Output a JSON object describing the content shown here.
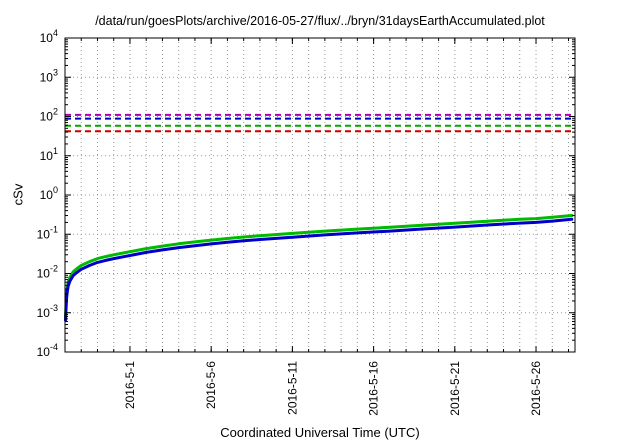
{
  "chart_data": {
    "type": "line",
    "title": "/data/run/goesPlots/archive/2016-05-27/flux/../bryn/31daysEarthAccumulated.plot",
    "xlabel": "Coordinated Universal Time (UTC)",
    "ylabel": "cSv",
    "y_scale": "log",
    "ylim": [
      0.0001,
      10000
    ],
    "y_tick_exponents": [
      4,
      3,
      2,
      1,
      0,
      -1,
      -2,
      -3,
      -4
    ],
    "x_span_days": 31.4,
    "x_start_date": "2016-04-27",
    "grid": "dotted, horizontal at each decade, vertical at each day",
    "legend": "none",
    "x_ticks": [
      {
        "day": 4,
        "label": "2016-5-1"
      },
      {
        "day": 9,
        "label": "2016-5-6"
      },
      {
        "day": 14,
        "label": "2016-5-11"
      },
      {
        "day": 19,
        "label": "2016-5-16"
      },
      {
        "day": 24,
        "label": "2016-5-21"
      },
      {
        "day": 29,
        "label": "2016-5-26"
      }
    ],
    "thresholds": [
      {
        "name": "limit-magenta",
        "value": 110,
        "color": "#aa00aa"
      },
      {
        "name": "limit-blue",
        "value": 88,
        "color": "#0000cc"
      },
      {
        "name": "limit-green",
        "value": 58,
        "color": "#00aa00"
      },
      {
        "name": "limit-red",
        "value": 42,
        "color": "#cc0000"
      }
    ],
    "series": [
      {
        "name": "accumulated-dose-green",
        "color": "#00bb00",
        "width": 3,
        "x": [
          0.03,
          0.06,
          0.1,
          0.15,
          0.2,
          0.3,
          0.5,
          0.7,
          1,
          1.5,
          2,
          2.5,
          3,
          4,
          5,
          6,
          7,
          8,
          9,
          10,
          11,
          12,
          14,
          16,
          18,
          20,
          22,
          24,
          26,
          28,
          29,
          30,
          31.2
        ],
        "y": [
          0.0008,
          0.0015,
          0.003,
          0.0045,
          0.006,
          0.008,
          0.011,
          0.013,
          0.016,
          0.02,
          0.024,
          0.027,
          0.03,
          0.036,
          0.043,
          0.05,
          0.057,
          0.064,
          0.071,
          0.078,
          0.085,
          0.092,
          0.105,
          0.12,
          0.135,
          0.15,
          0.17,
          0.19,
          0.215,
          0.24,
          0.25,
          0.27,
          0.3
        ]
      },
      {
        "name": "accumulated-dose-blue",
        "color": "#0000cc",
        "width": 3,
        "x": [
          0.03,
          0.06,
          0.1,
          0.15,
          0.2,
          0.3,
          0.5,
          0.7,
          1,
          1.5,
          2,
          2.5,
          3,
          4,
          5,
          6,
          7,
          8,
          9,
          10,
          11,
          12,
          14,
          16,
          18,
          20,
          22,
          24,
          26,
          28,
          29,
          30,
          31.2
        ],
        "y": [
          0.00065,
          0.0012,
          0.0024,
          0.0036,
          0.0048,
          0.0064,
          0.0088,
          0.0104,
          0.0128,
          0.016,
          0.0192,
          0.0216,
          0.024,
          0.0288,
          0.0344,
          0.04,
          0.0456,
          0.0512,
          0.0568,
          0.0624,
          0.068,
          0.0736,
          0.084,
          0.096,
          0.108,
          0.12,
          0.136,
          0.152,
          0.172,
          0.192,
          0.2,
          0.216,
          0.24
        ]
      }
    ],
    "colors": {
      "grid": "#999999",
      "axis": "#000000",
      "background": "#ffffff"
    }
  }
}
